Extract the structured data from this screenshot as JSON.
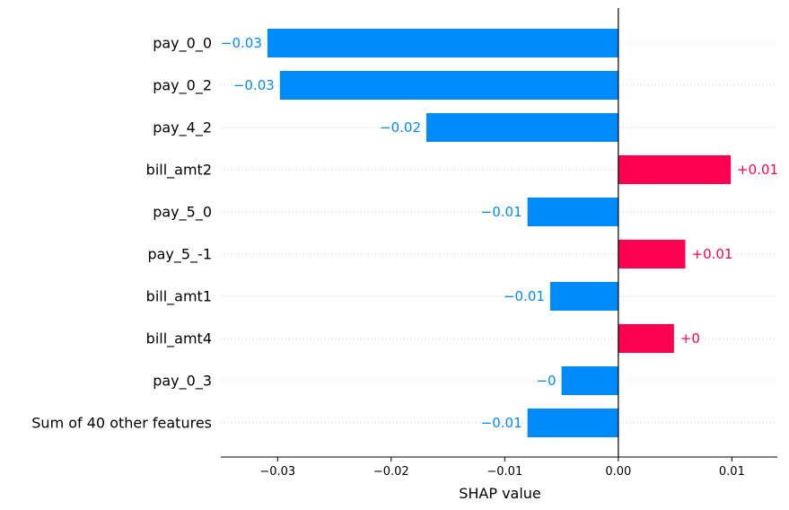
{
  "chart_data": {
    "type": "bar",
    "orientation": "horizontal",
    "xlabel": "SHAP value",
    "xlim": [
      -0.035,
      0.014
    ],
    "xticks": [
      -0.03,
      -0.02,
      -0.01,
      0.0,
      0.01
    ],
    "xtick_labels": [
      "−0.03",
      "−0.02",
      "−0.01",
      "0.00",
      "0.01"
    ],
    "grid": "horizontal dotted row guides",
    "colors": {
      "negative": "#008bfb",
      "positive": "#ff0051"
    },
    "categories": [
      "pay_0_0",
      "pay_0_2",
      "pay_4_2",
      "bill_amt2",
      "pay_5_0",
      "pay_5_-1",
      "bill_amt1",
      "bill_amt4",
      "pay_0_3",
      "Sum of 40 other features"
    ],
    "values": [
      -0.0309,
      -0.0298,
      -0.0169,
      0.0099,
      -0.008,
      0.0059,
      -0.006,
      0.0049,
      -0.005,
      -0.008
    ],
    "value_labels": [
      "−0.03",
      "−0.03",
      "−0.02",
      "+0.01",
      "−0.01",
      "+0.01",
      "−0.01",
      "+0",
      "−0",
      "−0.01"
    ]
  }
}
